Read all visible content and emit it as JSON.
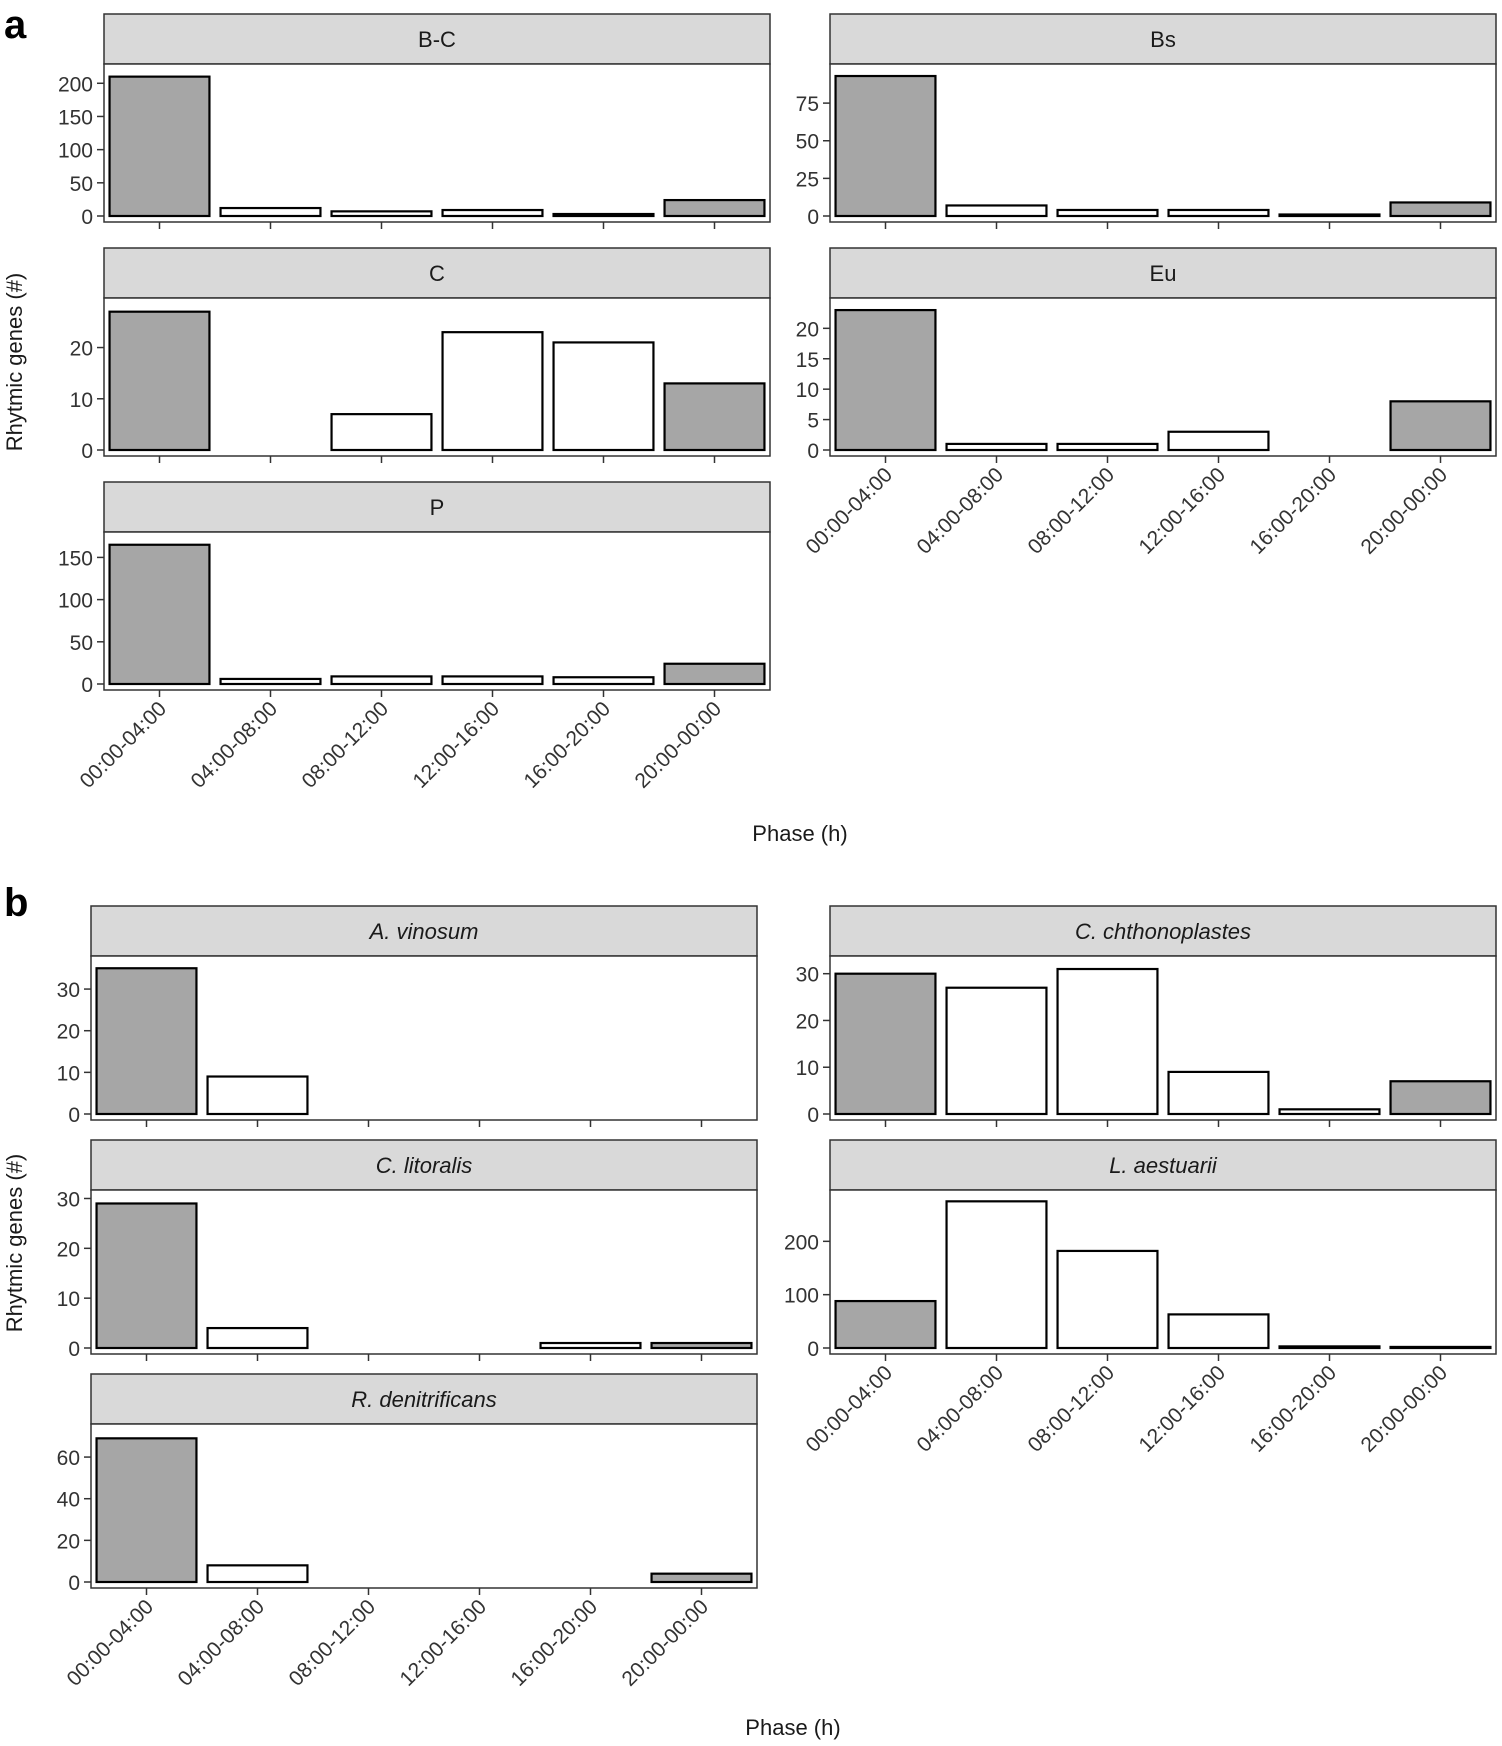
{
  "colors": {
    "shaded": "#a6a6a6",
    "unshaded": "#ffffff",
    "strip": "#d9d9d9",
    "stroke": "#1a1a1a",
    "text": "#1a1a1a",
    "axis_text": "#333333"
  },
  "chart_data": [
    {
      "type": "bar",
      "panel_label": "a",
      "xlabel": "Phase (h)",
      "ylabel": "Rhytmic genes (#)",
      "categories": [
        "00:00-04:00",
        "04:00-08:00",
        "08:00-12:00",
        "12:00-16:00",
        "16:00-20:00",
        "20:00-00:00"
      ],
      "shaded_categories": [
        "00:00-04:00",
        "20:00-00:00"
      ],
      "facets": [
        {
          "title": "B-C",
          "italic": false,
          "values": [
            210,
            12,
            7,
            9,
            3,
            24
          ],
          "ylim": [
            0,
            220
          ],
          "yticks": [
            0,
            50,
            100,
            150,
            200
          ]
        },
        {
          "title": "Bs",
          "italic": false,
          "values": [
            93,
            7,
            4,
            4,
            1,
            9
          ],
          "ylim": [
            0,
            97
          ],
          "yticks": [
            0,
            25,
            50,
            75
          ]
        },
        {
          "title": "C",
          "italic": false,
          "values": [
            27,
            0,
            7,
            23,
            21,
            13
          ],
          "ylim": [
            0,
            28.5
          ],
          "yticks": [
            0,
            10,
            20
          ]
        },
        {
          "title": "Eu",
          "italic": false,
          "values": [
            23,
            1,
            1,
            3,
            0,
            8
          ],
          "ylim": [
            0,
            24
          ],
          "yticks": [
            0,
            5,
            10,
            15,
            20
          ]
        },
        {
          "title": "P",
          "italic": false,
          "values": [
            165,
            6,
            9,
            9,
            8,
            24
          ],
          "ylim": [
            0,
            173
          ],
          "yticks": [
            0,
            50,
            100,
            150
          ]
        }
      ]
    },
    {
      "type": "bar",
      "panel_label": "b",
      "xlabel": "Phase (h)",
      "ylabel": "Rhytmic genes (#)",
      "categories": [
        "00:00-04:00",
        "04:00-08:00",
        "08:00-12:00",
        "12:00-16:00",
        "16:00-20:00",
        "20:00-00:00"
      ],
      "shaded_categories": [
        "00:00-04:00",
        "20:00-00:00"
      ],
      "facets": [
        {
          "title": "A. vinosum",
          "italic": true,
          "values": [
            35,
            9,
            0,
            0,
            0,
            0
          ],
          "ylim": [
            0,
            36.5
          ],
          "yticks": [
            0,
            10,
            20,
            30
          ]
        },
        {
          "title": "C. chthonoplastes",
          "italic": true,
          "values": [
            30,
            27,
            31,
            9,
            1,
            7
          ],
          "ylim": [
            0,
            32.5
          ],
          "yticks": [
            0,
            10,
            20,
            30
          ]
        },
        {
          "title": "C. litoralis",
          "italic": true,
          "values": [
            29,
            4,
            0,
            0,
            1,
            1
          ],
          "ylim": [
            0,
            30.5
          ],
          "yticks": [
            0,
            10,
            20,
            30
          ]
        },
        {
          "title": "L. aestuarii",
          "italic": true,
          "values": [
            88,
            275,
            182,
            63,
            3,
            2
          ],
          "ylim": [
            0,
            285
          ],
          "yticks": [
            0,
            100,
            200
          ]
        },
        {
          "title": "R. denitrificans",
          "italic": true,
          "values": [
            69,
            8,
            0,
            0,
            0,
            4
          ],
          "ylim": [
            0,
            73
          ],
          "yticks": [
            0,
            20,
            40,
            60
          ]
        }
      ]
    }
  ]
}
